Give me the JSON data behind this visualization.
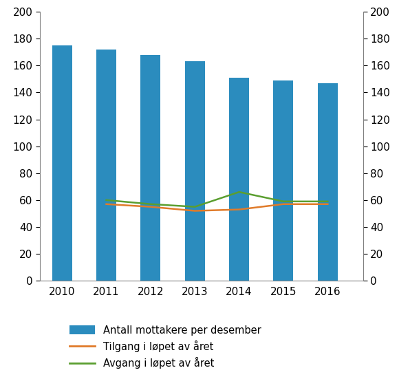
{
  "years": [
    2010,
    2011,
    2012,
    2013,
    2014,
    2015,
    2016
  ],
  "bar_values": [
    175,
    172,
    168,
    163,
    151,
    149,
    147
  ],
  "tilgang": [
    null,
    57,
    55,
    52,
    53,
    57,
    57
  ],
  "avgang": [
    null,
    60,
    57,
    55,
    66,
    59,
    59
  ],
  "bar_color": "#2b8cbe",
  "tilgang_color": "#e07b2a",
  "avgang_color": "#5a9e2f",
  "ylim": [
    0,
    200
  ],
  "yticks": [
    0,
    20,
    40,
    60,
    80,
    100,
    120,
    140,
    160,
    180,
    200
  ],
  "legend_labels": [
    "Antall mottakere per desember",
    "Tilgang i løpet av året",
    "Avgang i løpet av året"
  ],
  "figsize": [
    5.8,
    5.67
  ],
  "dpi": 100
}
